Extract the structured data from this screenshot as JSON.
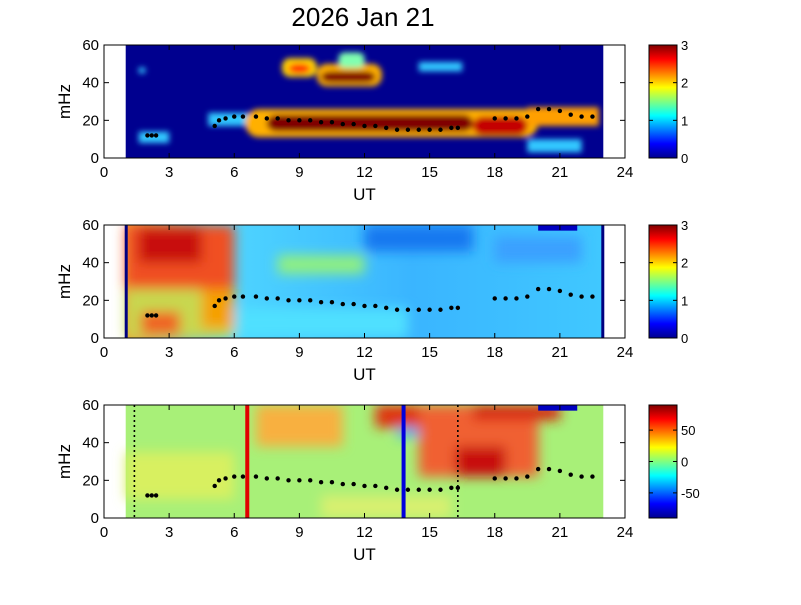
{
  "title": "2026 Jan 21",
  "chart_data": [
    {
      "type": "heatmap",
      "panel": "top",
      "xlabel": "UT",
      "ylabel": "mHz",
      "xlim": [
        0,
        24
      ],
      "ylim": [
        0,
        60
      ],
      "xticks": [
        "0",
        "3",
        "6",
        "9",
        "12",
        "15",
        "18",
        "21",
        "24"
      ],
      "yticks": [
        "0",
        "20",
        "40",
        "60"
      ],
      "colorbar": {
        "range": [
          0,
          3
        ],
        "ticks": [
          "0",
          "1",
          "2",
          "3"
        ]
      },
      "data_window_ut": [
        1,
        23
      ],
      "features": [
        {
          "ut": [
            7.5,
            17
          ],
          "mhz": [
            14,
            23
          ],
          "level": 3.0
        },
        {
          "ut": [
            17,
            19.5
          ],
          "mhz": [
            12,
            22
          ],
          "level": 2.8
        },
        {
          "ut": [
            10,
            12.5
          ],
          "mhz": [
            40,
            46
          ],
          "level": 3.0
        },
        {
          "ut": [
            8.5,
            9.5
          ],
          "mhz": [
            45,
            50
          ],
          "level": 2.5
        }
      ]
    },
    {
      "type": "heatmap",
      "panel": "middle",
      "xlabel": "UT",
      "ylabel": "mHz",
      "xlim": [
        0,
        24
      ],
      "ylim": [
        0,
        60
      ],
      "xticks": [
        "0",
        "3",
        "6",
        "9",
        "12",
        "15",
        "18",
        "21",
        "24"
      ],
      "yticks": [
        "0",
        "20",
        "40",
        "60"
      ],
      "colorbar": {
        "range": [
          0,
          3
        ],
        "ticks": [
          "0",
          "1",
          "2",
          "3"
        ]
      },
      "data_window_ut": [
        1,
        23
      ]
    },
    {
      "type": "heatmap",
      "panel": "bottom",
      "xlabel": "UT",
      "ylabel": "mHz",
      "xlim": [
        0,
        24
      ],
      "ylim": [
        0,
        60
      ],
      "xticks": [
        "0",
        "3",
        "6",
        "9",
        "12",
        "15",
        "18",
        "21",
        "24"
      ],
      "yticks": [
        "0",
        "20",
        "40",
        "60"
      ],
      "colorbar": {
        "range": [
          -90,
          90
        ],
        "ticks": [
          "-50",
          "0",
          "50"
        ]
      },
      "data_window_ut": [
        1,
        23
      ],
      "markers": [
        {
          "ut": 6.6,
          "color": "#e00000",
          "style": "solid"
        },
        {
          "ut": 13.8,
          "color": "#0000dd",
          "style": "solid"
        },
        {
          "ut": 1.4,
          "color": "#000000",
          "style": "dotted"
        },
        {
          "ut": 16.3,
          "color": "#000000",
          "style": "dotted"
        }
      ]
    }
  ],
  "trace": {
    "ut": [
      2.0,
      2.2,
      2.4,
      5.1,
      5.3,
      5.6,
      6.0,
      6.4,
      7.0,
      7.5,
      8.0,
      8.5,
      9.0,
      9.5,
      10.0,
      10.5,
      11.0,
      11.5,
      12.0,
      12.5,
      13.0,
      13.5,
      14.0,
      14.5,
      15.0,
      15.5,
      16.0,
      16.3,
      18.0,
      18.5,
      19.0,
      19.5,
      20.0,
      20.5,
      21.0,
      21.5,
      22.0,
      22.5
    ],
    "mhz": [
      12,
      12,
      12,
      17,
      20,
      21,
      22,
      22,
      22,
      21,
      21,
      20,
      20,
      20,
      19,
      19,
      18,
      18,
      17,
      17,
      16,
      15,
      15,
      15,
      15,
      15,
      16,
      16,
      21,
      21,
      21,
      22,
      26,
      26,
      25,
      23,
      22,
      22
    ]
  }
}
